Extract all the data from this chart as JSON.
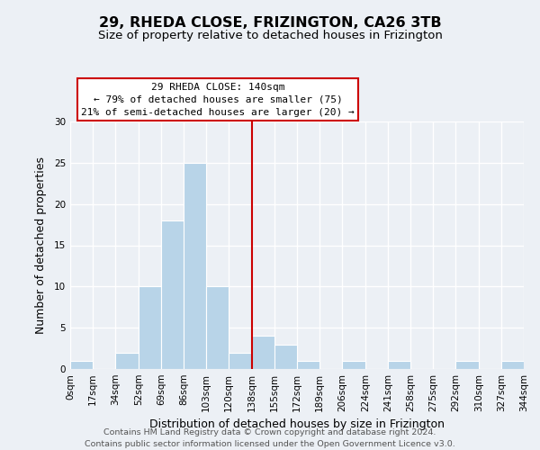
{
  "title": "29, RHEDA CLOSE, FRIZINGTON, CA26 3TB",
  "subtitle": "Size of property relative to detached houses in Frizington",
  "xlabel": "Distribution of detached houses by size in Frizington",
  "ylabel": "Number of detached properties",
  "footer_line1": "Contains HM Land Registry data © Crown copyright and database right 2024.",
  "footer_line2": "Contains public sector information licensed under the Open Government Licence v3.0.",
  "bin_edges": [
    0,
    17,
    34,
    52,
    69,
    86,
    103,
    120,
    138,
    155,
    172,
    189,
    206,
    224,
    241,
    258,
    275,
    292,
    310,
    327,
    344
  ],
  "bin_labels": [
    "0sqm",
    "17sqm",
    "34sqm",
    "52sqm",
    "69sqm",
    "86sqm",
    "103sqm",
    "120sqm",
    "138sqm",
    "155sqm",
    "172sqm",
    "189sqm",
    "206sqm",
    "224sqm",
    "241sqm",
    "258sqm",
    "275sqm",
    "292sqm",
    "310sqm",
    "327sqm",
    "344sqm"
  ],
  "counts": [
    1,
    0,
    2,
    10,
    18,
    25,
    10,
    2,
    4,
    3,
    1,
    0,
    1,
    0,
    1,
    0,
    0,
    1,
    0,
    1
  ],
  "bar_color": "#b8d4e8",
  "bar_edge_color": "#ffffff",
  "property_line_x": 138,
  "property_line_color": "#cc0000",
  "annotation_title": "29 RHEDA CLOSE: 140sqm",
  "annotation_line1": "← 79% of detached houses are smaller (75)",
  "annotation_line2": "21% of semi-detached houses are larger (20) →",
  "annotation_box_color": "#ffffff",
  "annotation_box_edge_color": "#cc0000",
  "ylim": [
    0,
    30
  ],
  "yticks": [
    0,
    5,
    10,
    15,
    20,
    25,
    30
  ],
  "background_color": "#ecf0f5",
  "grid_color": "#ffffff",
  "title_fontsize": 11.5,
  "subtitle_fontsize": 9.5,
  "axis_label_fontsize": 9,
  "tick_fontsize": 7.5,
  "footer_fontsize": 6.8,
  "annotation_fontsize": 8.0
}
